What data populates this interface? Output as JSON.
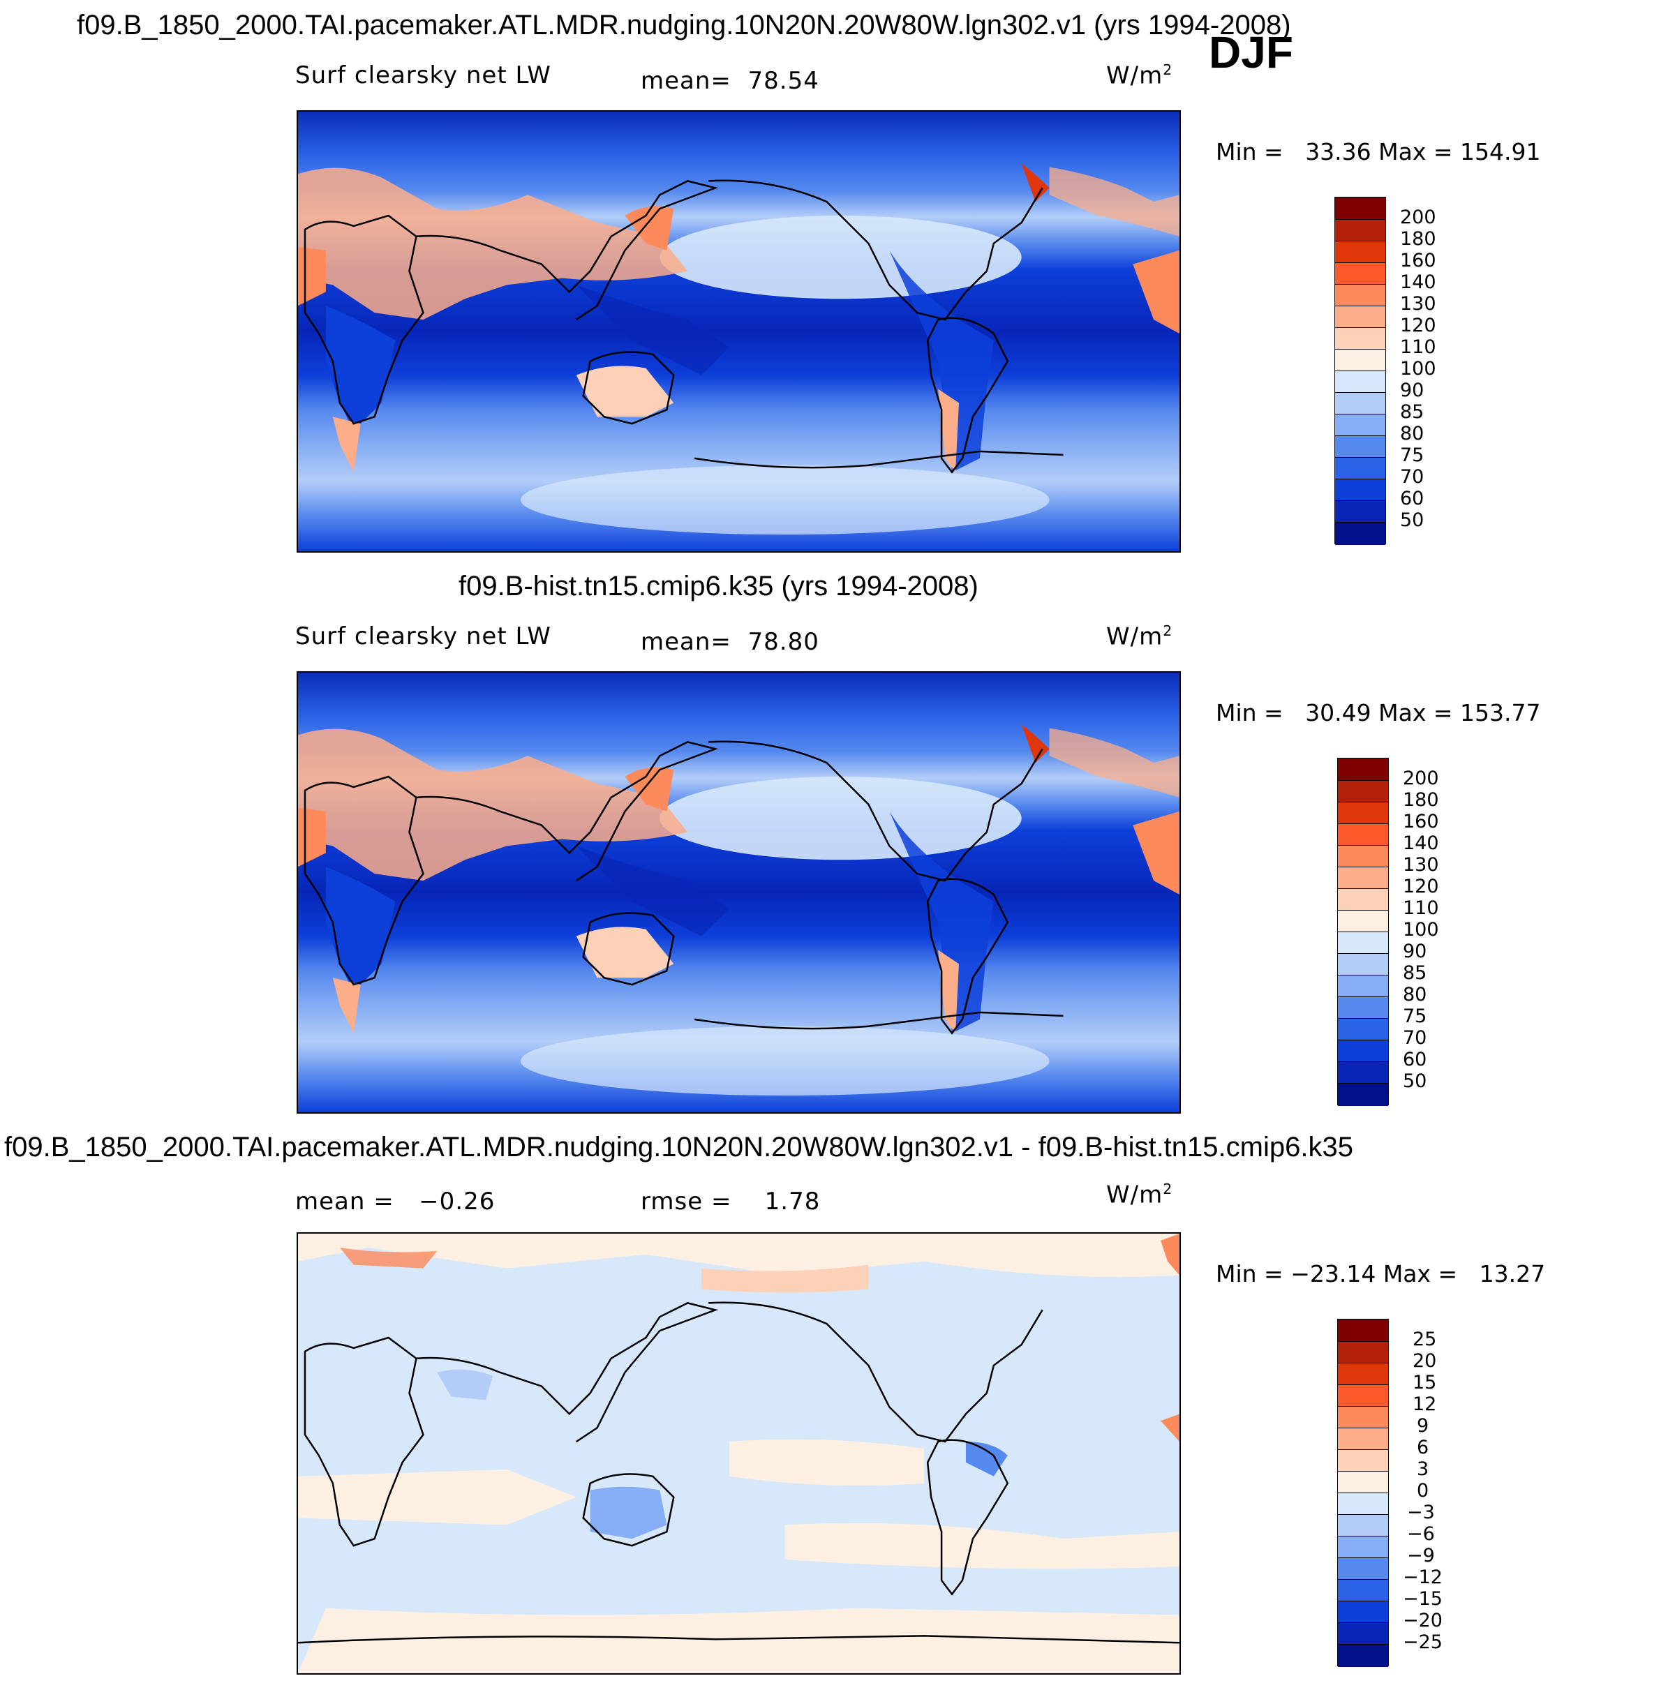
{
  "season": "DJF",
  "panels": [
    {
      "title": "f09.B_1850_2000.TAI.pacemaker.ATL.MDR.nudging.10N20N.20W80W.lgn302.v1 (yrs 1994-2008)",
      "variable": "Surf clearsky net LW",
      "stat1_label": "mean=",
      "stat1_value": "78.54",
      "units": "W/m",
      "units_exp": "2",
      "min_label": "Min =",
      "min_value": "33.36",
      "max_label": "Max =",
      "max_value": "154.91",
      "colorbar_labels": [
        "200",
        "180",
        "160",
        "140",
        "130",
        "120",
        "110",
        "100",
        "90",
        "85",
        "80",
        "75",
        "70",
        "60",
        "50"
      ]
    },
    {
      "title": "f09.B-hist.tn15.cmip6.k35 (yrs 1994-2008)",
      "variable": "Surf clearsky net LW",
      "stat1_label": "mean=",
      "stat1_value": "78.80",
      "units": "W/m",
      "units_exp": "2",
      "min_label": "Min =",
      "min_value": "30.49",
      "max_label": "Max =",
      "max_value": "153.77",
      "colorbar_labels": [
        "200",
        "180",
        "160",
        "140",
        "130",
        "120",
        "110",
        "100",
        "90",
        "85",
        "80",
        "75",
        "70",
        "60",
        "50"
      ]
    },
    {
      "title": "f09.B_1850_2000.TAI.pacemaker.ATL.MDR.nudging.10N20N.20W80W.lgn302.v1 - f09.B-hist.tn15.cmip6.k35",
      "stat1_label": "mean =",
      "stat1_value": "−0.26",
      "stat2_label": "rmse =",
      "stat2_value": "1.78",
      "units": "W/m",
      "units_exp": "2",
      "min_label": "Min =",
      "min_value": "−23.14",
      "max_label": "Max =",
      "max_value": "13.27",
      "colorbar_labels": [
        "25",
        "20",
        "15",
        "12",
        "9",
        "6",
        "3",
        "0",
        "−3",
        "−6",
        "−9",
        "−12",
        "−15",
        "−20",
        "−25"
      ]
    }
  ],
  "colors": {
    "abs_scale": [
      "#7f0000",
      "#b3200a",
      "#e0360c",
      "#fc5a2a",
      "#fc8a5b",
      "#fcad8a",
      "#fdd0b8",
      "#fdf0e2",
      "#d7e8fb",
      "#b3cdf8",
      "#86aef4",
      "#5689ee",
      "#2a63e6",
      "#0d3fd9",
      "#0726b8",
      "#00108a"
    ],
    "land": "#f7b8a0",
    "coast": "#000000"
  },
  "chart_data": [
    {
      "type": "heatmap",
      "title": "f09.B_1850_2000.TAI.pacemaker.ATL.MDR.nudging.10N20N.20W80W.lgn302.v1 (yrs 1994-2008)",
      "variable": "Surf clearsky net LW",
      "units": "W/m2",
      "season": "DJF",
      "mean": 78.54,
      "min": 33.36,
      "max": 154.91,
      "levels": [
        50,
        60,
        70,
        75,
        80,
        85,
        90,
        100,
        110,
        120,
        130,
        140,
        160,
        180,
        200
      ]
    },
    {
      "type": "heatmap",
      "title": "f09.B-hist.tn15.cmip6.k35 (yrs 1994-2008)",
      "variable": "Surf clearsky net LW",
      "units": "W/m2",
      "season": "DJF",
      "mean": 78.8,
      "min": 30.49,
      "max": 153.77,
      "levels": [
        50,
        60,
        70,
        75,
        80,
        85,
        90,
        100,
        110,
        120,
        130,
        140,
        160,
        180,
        200
      ]
    },
    {
      "type": "heatmap",
      "title": "f09.B_1850_2000.TAI.pacemaker.ATL.MDR.nudging.10N20N.20W80W.lgn302.v1 - f09.B-hist.tn15.cmip6.k35",
      "units": "W/m2",
      "season": "DJF",
      "mean": -0.26,
      "rmse": 1.78,
      "min": -23.14,
      "max": 13.27,
      "levels": [
        -25,
        -20,
        -15,
        -12,
        -9,
        -6,
        -3,
        0,
        3,
        6,
        9,
        12,
        15,
        20,
        25
      ]
    }
  ]
}
